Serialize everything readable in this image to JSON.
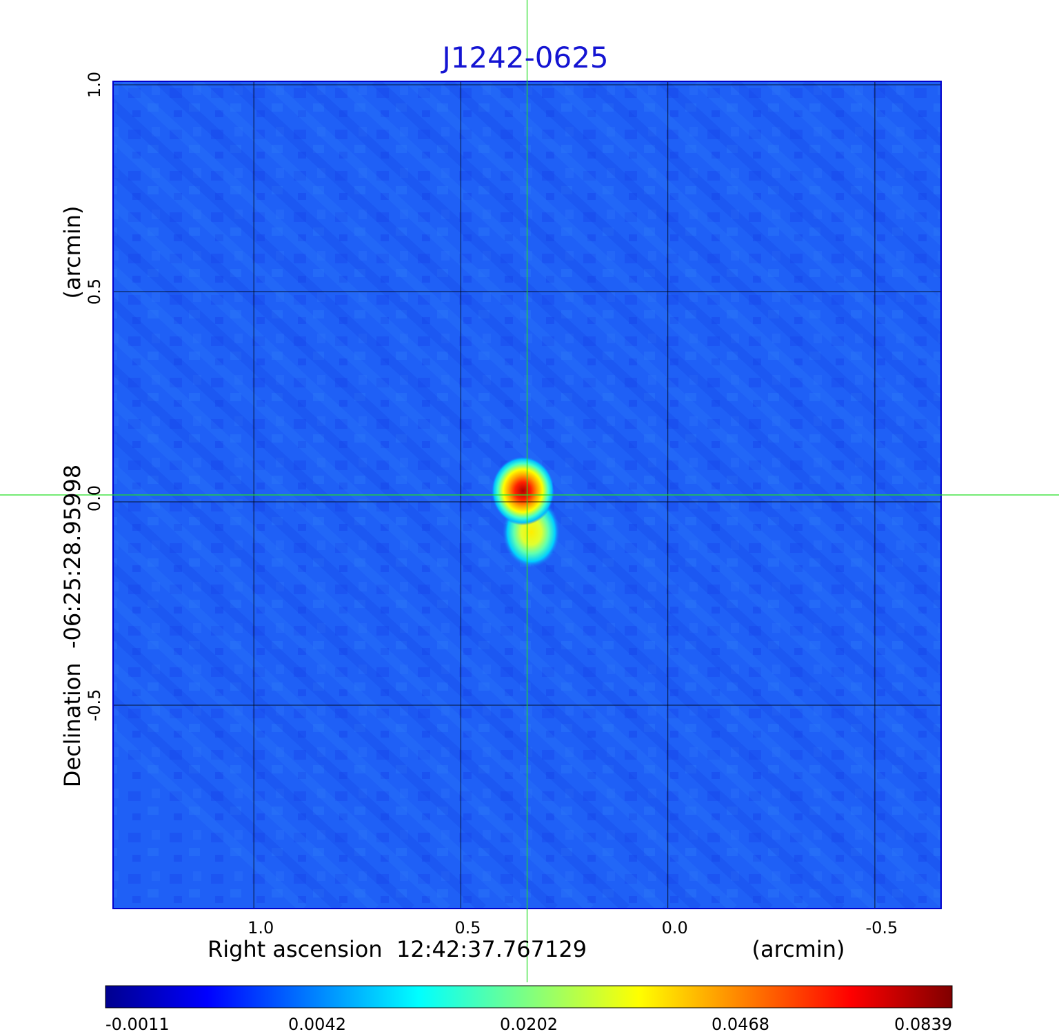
{
  "title": "J1242-0625",
  "colors": {
    "title": "#1414d2",
    "crosshair": "#22dd22",
    "grid": "#000000",
    "background_pixel": "#1f60f6"
  },
  "chart_data": {
    "type": "heatmap",
    "title": "J1242-0625",
    "colormap": "jet",
    "xlabel_left": "Right ascension  12:42:37.767129",
    "xlabel_right": "(arcmin)",
    "ylabel_left": "Declination  -06:25:28.95998",
    "ylabel_right": "(arcmin)",
    "x_ticks": [
      1.0,
      0.5,
      0.0,
      -0.5
    ],
    "x_tick_labels": [
      "1.0",
      "0.5",
      "0.0",
      "-0.5"
    ],
    "y_ticks": [
      1.0,
      0.5,
      0.0,
      -0.5
    ],
    "y_tick_labels": [
      "1.0",
      "0.5",
      "0.0",
      "-0.5"
    ],
    "xlim": [
      1.34,
      -0.66
    ],
    "ylim": [
      -1.0,
      1.0
    ],
    "grid": true,
    "crosshair": {
      "x": 0.34,
      "y": 0.0
    },
    "sources": [
      {
        "ra": 0.35,
        "dec": 0.01,
        "peak": 0.0839
      },
      {
        "ra": 0.33,
        "dec": -0.09,
        "peak": 0.045
      }
    ],
    "colorbar": {
      "position": "bottom",
      "ticks": [
        -0.0011,
        0.0042,
        0.0202,
        0.0468,
        0.0839
      ],
      "tick_labels": [
        "-0.0011",
        "0.0042",
        "0.0202",
        "0.0468",
        "0.0839"
      ]
    }
  }
}
